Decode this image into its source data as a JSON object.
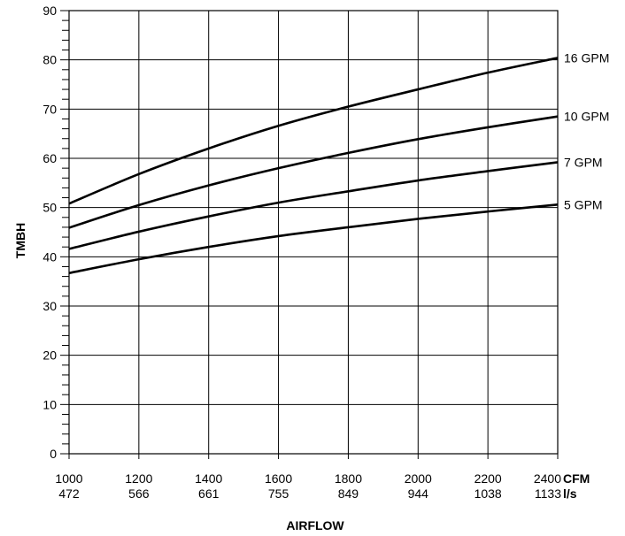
{
  "chart_data": {
    "type": "line",
    "title": "",
    "xlabel": "AIRFLOW",
    "ylabel": "TMBH",
    "x_unit_primary": "CFM",
    "x_unit_secondary": "l/s",
    "xlim": [
      1000,
      2400
    ],
    "ylim": [
      0,
      90
    ],
    "x_ticks": [
      1000,
      1200,
      1400,
      1600,
      1800,
      2000,
      2200,
      2400
    ],
    "x_ticks_secondary": [
      "472",
      "566",
      "661",
      "755",
      "849",
      "944",
      "1038",
      "1133"
    ],
    "y_ticks": [
      0,
      10,
      20,
      30,
      40,
      50,
      60,
      70,
      80,
      90
    ],
    "grid": true,
    "legend": "inline-right",
    "x": [
      1000,
      1200,
      1400,
      1600,
      1800,
      2000,
      2200,
      2400
    ],
    "series": [
      {
        "name": "16 GPM",
        "values": [
          50.8,
          56.8,
          62.0,
          66.6,
          70.5,
          74.0,
          77.4,
          80.4
        ]
      },
      {
        "name": "10 GPM",
        "values": [
          45.9,
          50.5,
          54.5,
          58.0,
          61.1,
          63.9,
          66.3,
          68.5
        ]
      },
      {
        "name": "7 GPM",
        "values": [
          41.6,
          45.1,
          48.2,
          51.0,
          53.3,
          55.5,
          57.4,
          59.2
        ]
      },
      {
        "name": "5 GPM",
        "values": [
          36.7,
          39.5,
          42.0,
          44.2,
          46.0,
          47.7,
          49.2,
          50.6
        ]
      }
    ]
  }
}
